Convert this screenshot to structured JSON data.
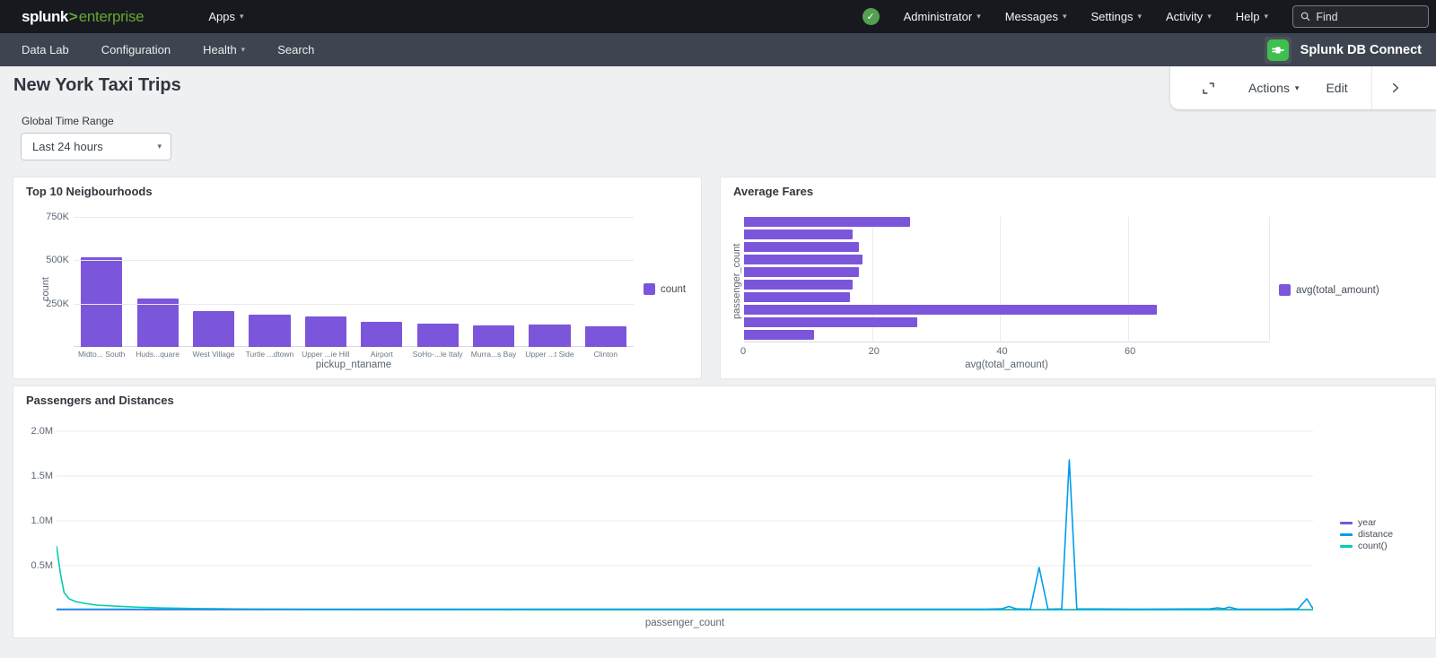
{
  "colors": {
    "accent_purple": "#7B56DB",
    "accent_blue": "#009CEB",
    "accent_teal": "#00CDAF",
    "splunk_green": "#65A637",
    "status_green": "#53A051",
    "db_icon_green": "#3FBF4E"
  },
  "topnav": {
    "logo_splunk": "splunk",
    "logo_gt": ">",
    "logo_product": "enterprise",
    "apps_label": "Apps",
    "menus": [
      {
        "label": "Administrator"
      },
      {
        "label": "Messages"
      },
      {
        "label": "Settings"
      },
      {
        "label": "Activity"
      },
      {
        "label": "Help"
      }
    ],
    "find_placeholder": "Find"
  },
  "appnav": {
    "items": [
      {
        "label": "Data Lab",
        "caret": false
      },
      {
        "label": "Configuration",
        "caret": false
      },
      {
        "label": "Health",
        "caret": true
      },
      {
        "label": "Search",
        "caret": false
      }
    ],
    "app_name": "Splunk DB Connect"
  },
  "page": {
    "title": "New York Taxi Trips",
    "actions_label": "Actions",
    "edit_label": "Edit"
  },
  "filters": {
    "time_label": "Global Time Range",
    "time_value": "Last 24 hours"
  },
  "chart_data": [
    {
      "type": "bar",
      "title": "Top 10 Neigbourhoods",
      "categories": [
        "Midto... South",
        "Huds...quare",
        "West Village",
        "Turtle ...dtown",
        "Upper ...ie Hill",
        "Airport",
        "SoHo-...le Italy",
        "Murra...s Bay",
        "Upper ...t Side",
        "Clinton"
      ],
      "values": [
        515000,
        278000,
        205000,
        188000,
        176000,
        145000,
        136000,
        126000,
        128000,
        119000
      ],
      "xlabel": "pickup_ntaname",
      "ylabel": "count",
      "yticks": [
        {
          "v": 250000,
          "label": "250K"
        },
        {
          "v": 500000,
          "label": "500K"
        },
        {
          "v": 750000,
          "label": "750K"
        }
      ],
      "ymax": 790000,
      "bar_color": "#7B56DB",
      "legend": [
        {
          "label": "count",
          "color": "#7B56DB"
        }
      ]
    },
    {
      "type": "bar-horizontal",
      "title": "Average Fares",
      "values": [
        26,
        17,
        18,
        18.5,
        18,
        17,
        16.5,
        64.5,
        27,
        11
      ],
      "xlabel": "avg(total_amount)",
      "ylabel": "passenger_count",
      "xticks": [
        {
          "v": 0,
          "label": "0"
        },
        {
          "v": 20,
          "label": "20"
        },
        {
          "v": 40,
          "label": "40"
        },
        {
          "v": 60,
          "label": "60"
        }
      ],
      "xmax": 82,
      "bar_color": "#7B56DB",
      "legend": [
        {
          "label": "avg(total_amount)",
          "color": "#7B56DB"
        }
      ]
    },
    {
      "type": "line",
      "title": "Passengers and Distances",
      "xlabel": "passenger_count",
      "yticks": [
        {
          "v": 0.5,
          "label": "0.5M"
        },
        {
          "v": 1.0,
          "label": "1.0M"
        },
        {
          "v": 1.5,
          "label": "1.5M"
        },
        {
          "v": 2.0,
          "label": "2.0M"
        }
      ],
      "ymax": 2.1,
      "y_unit": "millions",
      "series": [
        {
          "name": "year",
          "color": "#7B56DB",
          "points": [
            [
              0,
              0.01
            ],
            [
              1,
              0.01
            ]
          ]
        },
        {
          "name": "count()",
          "color": "#00CDAF",
          "points": [
            [
              0,
              0.72
            ],
            [
              0.003,
              0.42
            ],
            [
              0.006,
              0.2
            ],
            [
              0.01,
              0.13
            ],
            [
              0.015,
              0.1
            ],
            [
              0.022,
              0.08
            ],
            [
              0.032,
              0.06
            ],
            [
              0.045,
              0.05
            ],
            [
              0.06,
              0.04
            ],
            [
              0.08,
              0.03
            ],
            [
              0.11,
              0.022
            ],
            [
              0.15,
              0.016
            ],
            [
              0.2,
              0.012
            ],
            [
              0.28,
              0.01
            ],
            [
              0.4,
              0.008
            ],
            [
              0.6,
              0.007
            ],
            [
              0.8,
              0.006
            ],
            [
              1,
              0.006
            ]
          ]
        },
        {
          "name": "distance",
          "color": "#009CEB",
          "points": [
            [
              0,
              0.015
            ],
            [
              0.3,
              0.015
            ],
            [
              0.6,
              0.015
            ],
            [
              0.74,
              0.015
            ],
            [
              0.752,
              0.018
            ],
            [
              0.758,
              0.045
            ],
            [
              0.764,
              0.018
            ],
            [
              0.775,
              0.015
            ],
            [
              0.782,
              0.48
            ],
            [
              0.789,
              0.015
            ],
            [
              0.8,
              0.018
            ],
            [
              0.806,
              1.68
            ],
            [
              0.812,
              0.018
            ],
            [
              0.86,
              0.015
            ],
            [
              0.918,
              0.018
            ],
            [
              0.924,
              0.03
            ],
            [
              0.929,
              0.02
            ],
            [
              0.933,
              0.038
            ],
            [
              0.94,
              0.015
            ],
            [
              0.97,
              0.015
            ],
            [
              0.988,
              0.018
            ],
            [
              0.995,
              0.13
            ],
            [
              1,
              0.02
            ]
          ]
        }
      ],
      "legend": [
        {
          "label": "year",
          "color": "#7B56DB"
        },
        {
          "label": "distance",
          "color": "#009CEB"
        },
        {
          "label": "count()",
          "color": "#00CDAF"
        }
      ]
    }
  ]
}
